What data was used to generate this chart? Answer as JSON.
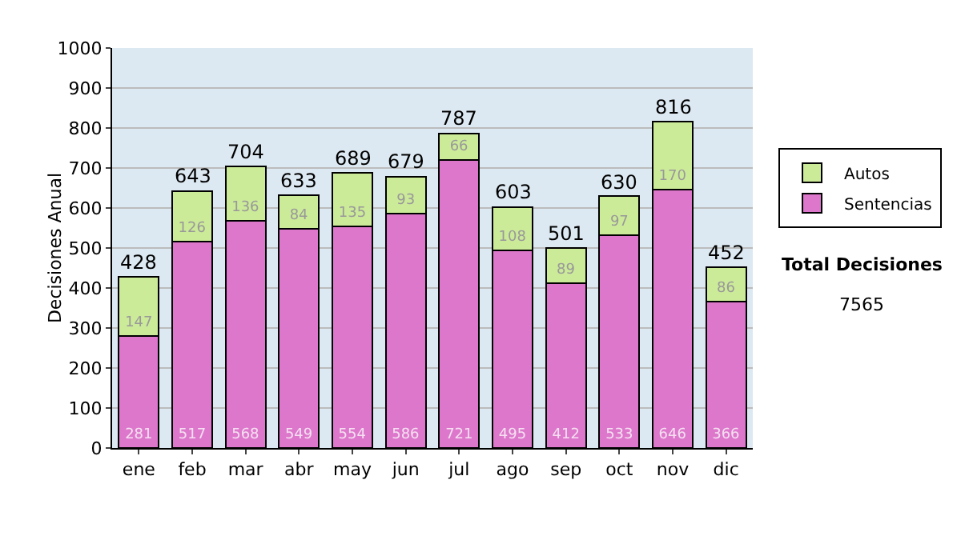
{
  "chart_data": {
    "type": "bar",
    "stacked": true,
    "ylabel": "Decisiones Anual",
    "categories": [
      "ene",
      "feb",
      "mar",
      "abr",
      "may",
      "jun",
      "jul",
      "ago",
      "sep",
      "oct",
      "nov",
      "dic"
    ],
    "series": [
      {
        "name": "Sentencias",
        "color": "#dd77cc",
        "values": [
          281,
          517,
          568,
          549,
          554,
          586,
          721,
          495,
          412,
          533,
          646,
          366
        ]
      },
      {
        "name": "Autos",
        "color": "#cceb99",
        "values": [
          147,
          126,
          136,
          84,
          135,
          93,
          66,
          108,
          89,
          97,
          170,
          86
        ]
      }
    ],
    "totals": [
      "428",
      "643",
      "704",
      "633",
      "689",
      "679",
      "787",
      "603",
      "501",
      "630",
      "816",
      "452"
    ],
    "data_labels": true,
    "ylim": [
      0,
      1000
    ],
    "yticks": [
      0,
      100,
      200,
      300,
      400,
      500,
      600,
      700,
      800,
      900,
      1000
    ],
    "grid": "y",
    "legend": "right",
    "annotations": [
      "Total Decisiones",
      "7565"
    ]
  }
}
